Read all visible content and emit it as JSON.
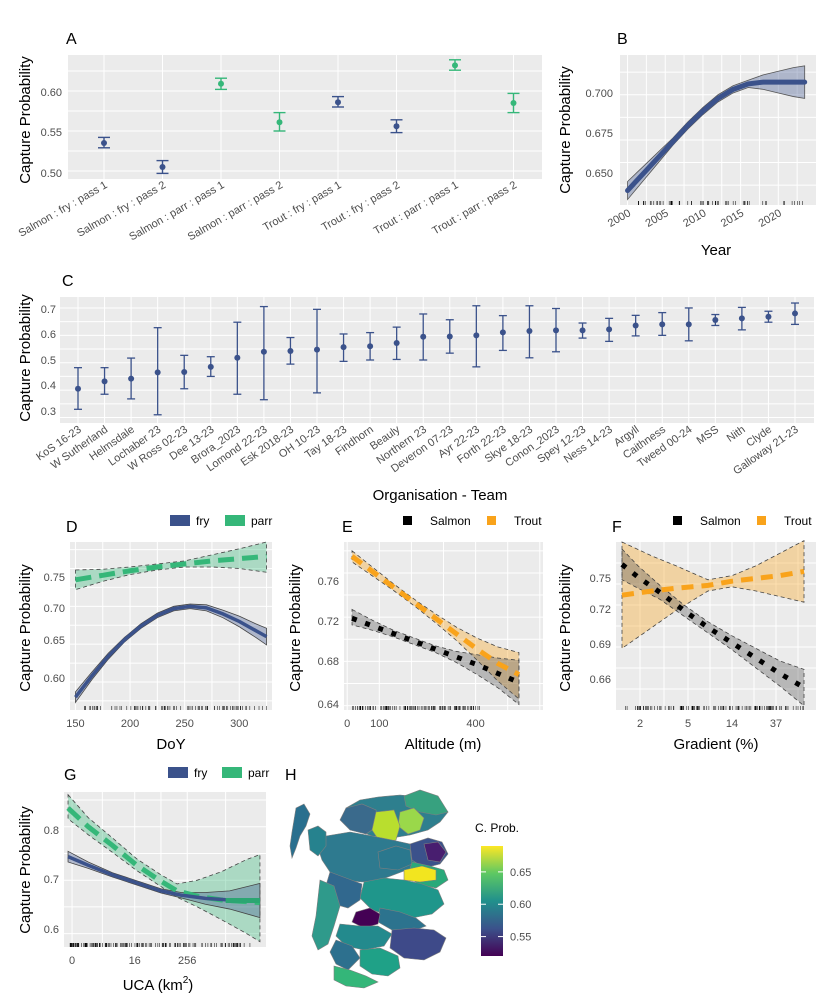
{
  "figure": {
    "colors": {
      "panel": "#EBEBEB",
      "grid": "#FFFFFF",
      "fry": "#3B528B",
      "parr": "#35B779",
      "salmon": "#000000",
      "trout": "#F9A31B",
      "parr_teal": "#2BA672"
    }
  },
  "chart_data": [
    {
      "panel": "A",
      "type": "scatter",
      "title": "",
      "xlabel": "",
      "ylabel": "Capture Probability",
      "ylim": [
        0.49,
        0.645
      ],
      "yticks": [
        "0.50",
        "0.55",
        "0.60"
      ],
      "categories": [
        "Salmon : fry : pass 1",
        "Salmon : fry : pass 2",
        "Salmon : parr : pass 1",
        "Salmon : parr : pass 2",
        "Trout : fry : pass 1",
        "Trout : fry : pass 2",
        "Trout : parr : pass 1",
        "Trout : parr : pass 2"
      ],
      "values": [
        0.535,
        0.505,
        0.609,
        0.561,
        0.586,
        0.556,
        0.632,
        0.585
      ],
      "lower": [
        0.529,
        0.497,
        0.602,
        0.55,
        0.58,
        0.548,
        0.626,
        0.573
      ],
      "upper": [
        0.542,
        0.513,
        0.616,
        0.573,
        0.593,
        0.564,
        0.639,
        0.597
      ],
      "life_stage": [
        "fry",
        "fry",
        "parr",
        "parr",
        "fry",
        "fry",
        "parr",
        "parr"
      ]
    },
    {
      "panel": "B",
      "type": "line",
      "xlabel": "Year",
      "ylabel": "Capture Probability",
      "xlim": [
        1999,
        2025
      ],
      "ylim": [
        0.639,
        0.722
      ],
      "xticks": [
        "2000",
        "2005",
        "2010",
        "2015",
        "2020"
      ],
      "yticks": [
        "0.650",
        "0.675",
        "0.700"
      ],
      "x": [
        2000,
        2002,
        2004,
        2006,
        2008,
        2010,
        2012,
        2014,
        2016,
        2018,
        2020,
        2022,
        2023.5
      ],
      "y": [
        0.647,
        0.656,
        0.665,
        0.674,
        0.683,
        0.691,
        0.698,
        0.703,
        0.706,
        0.707,
        0.707,
        0.707,
        0.707
      ],
      "lower": [
        0.642,
        0.652,
        0.662,
        0.672,
        0.681,
        0.689,
        0.696,
        0.701,
        0.704,
        0.703,
        0.701,
        0.699,
        0.698
      ],
      "upper": [
        0.652,
        0.66,
        0.668,
        0.676,
        0.685,
        0.693,
        0.7,
        0.705,
        0.708,
        0.711,
        0.713,
        0.715,
        0.716
      ]
    },
    {
      "panel": "C",
      "type": "scatter",
      "xlabel": "Organisation - Team",
      "ylabel": "Capture Probability",
      "ylim": [
        0.28,
        0.74
      ],
      "yticks": [
        "0.3",
        "0.4",
        "0.5",
        "0.6",
        "0.7"
      ],
      "categories": [
        "KoS 16-23",
        "W Sutherland",
        "Helmsdale",
        "Lochaber 23",
        "W Ross 02-23",
        "Dee 13-23",
        "Brora_2023",
        "Lomond 22-23",
        "Esk 2018-23",
        "OH 10-23",
        "Tay 18-23",
        "Findhorn",
        "Beauly",
        "Northern 23",
        "Deveron 07-23",
        "Ayr 22-23",
        "Forth 22-23",
        "Skye 18-23",
        "Conon_2023",
        "Spey 12-23",
        "Ness 14-23",
        "Argyll",
        "Caithness",
        "Tweed 00-24",
        "MSS",
        "Nith",
        "Clyde",
        "Galloway 21-23"
      ],
      "values": [
        0.405,
        0.432,
        0.442,
        0.465,
        0.466,
        0.485,
        0.518,
        0.54,
        0.543,
        0.548,
        0.557,
        0.56,
        0.572,
        0.595,
        0.596,
        0.6,
        0.611,
        0.616,
        0.618,
        0.618,
        0.622,
        0.636,
        0.64,
        0.64,
        0.656,
        0.662,
        0.668,
        0.68
      ],
      "lower": [
        0.33,
        0.385,
        0.368,
        0.31,
        0.405,
        0.45,
        0.385,
        0.365,
        0.495,
        0.39,
        0.505,
        0.51,
        0.512,
        0.51,
        0.535,
        0.485,
        0.545,
        0.518,
        0.54,
        0.59,
        0.578,
        0.598,
        0.6,
        0.58,
        0.636,
        0.62,
        0.648,
        0.64
      ],
      "upper": [
        0.482,
        0.482,
        0.517,
        0.628,
        0.527,
        0.522,
        0.648,
        0.705,
        0.592,
        0.695,
        0.605,
        0.61,
        0.63,
        0.678,
        0.657,
        0.708,
        0.672,
        0.708,
        0.698,
        0.645,
        0.662,
        0.673,
        0.683,
        0.7,
        0.676,
        0.702,
        0.688,
        0.718
      ]
    },
    {
      "panel": "D",
      "type": "line",
      "xlabel": "DoY",
      "ylabel": "Capture Probability",
      "xlim": [
        145,
        330
      ],
      "ylim": [
        0.563,
        0.785
      ],
      "xticks": [
        "150",
        "200",
        "250",
        "300"
      ],
      "yticks": [
        "0.60",
        "0.65",
        "0.70",
        "0.75"
      ],
      "legend": [
        "fry",
        "parr"
      ],
      "series": [
        {
          "name": "fry",
          "x": [
            150,
            165,
            180,
            195,
            210,
            225,
            240,
            255,
            270,
            285,
            300,
            315,
            325
          ],
          "y": [
            0.58,
            0.608,
            0.634,
            0.656,
            0.674,
            0.688,
            0.697,
            0.7,
            0.698,
            0.69,
            0.68,
            0.668,
            0.66
          ],
          "lower": [
            0.573,
            0.603,
            0.63,
            0.653,
            0.671,
            0.685,
            0.694,
            0.697,
            0.694,
            0.685,
            0.673,
            0.659,
            0.649
          ],
          "upper": [
            0.587,
            0.613,
            0.638,
            0.659,
            0.677,
            0.691,
            0.7,
            0.703,
            0.702,
            0.695,
            0.687,
            0.677,
            0.671
          ]
        },
        {
          "name": "parr",
          "x": [
            150,
            175,
            200,
            225,
            250,
            275,
            300,
            325
          ],
          "y": [
            0.735,
            0.741,
            0.747,
            0.752,
            0.756,
            0.76,
            0.763,
            0.766
          ],
          "lower": [
            0.722,
            0.733,
            0.742,
            0.748,
            0.752,
            0.752,
            0.75,
            0.745
          ],
          "upper": [
            0.748,
            0.749,
            0.752,
            0.756,
            0.76,
            0.768,
            0.776,
            0.785
          ]
        }
      ]
    },
    {
      "panel": "E",
      "type": "line",
      "xlabel": "Altitude (m)",
      "ylabel": "Capture Probability",
      "xlim": [
        -10,
        610
      ],
      "ylim": [
        0.636,
        0.788
      ],
      "xticks": [
        "0",
        "100",
        "400"
      ],
      "yticks": [
        "0.64",
        "0.68",
        "0.72",
        "0.76"
      ],
      "legend": [
        "Salmon",
        "Trout"
      ],
      "series": [
        {
          "name": "Salmon",
          "x": [
            15,
            80,
            145,
            210,
            275,
            340,
            405,
            470,
            535
          ],
          "y": [
            0.719,
            0.712,
            0.705,
            0.698,
            0.691,
            0.684,
            0.677,
            0.669,
            0.661
          ],
          "lower": [
            0.713,
            0.708,
            0.702,
            0.695,
            0.688,
            0.679,
            0.668,
            0.656,
            0.641
          ],
          "upper": [
            0.727,
            0.717,
            0.708,
            0.701,
            0.694,
            0.689,
            0.686,
            0.683,
            0.681
          ]
        },
        {
          "name": "Trout",
          "x": [
            15,
            80,
            145,
            210,
            275,
            340,
            405,
            470,
            535
          ],
          "y": [
            0.775,
            0.761,
            0.747,
            0.733,
            0.719,
            0.705,
            0.691,
            0.678,
            0.668
          ],
          "lower": [
            0.77,
            0.757,
            0.744,
            0.73,
            0.715,
            0.699,
            0.681,
            0.662,
            0.646
          ],
          "upper": [
            0.78,
            0.765,
            0.75,
            0.736,
            0.723,
            0.711,
            0.701,
            0.693,
            0.688
          ]
        }
      ]
    },
    {
      "panel": "F",
      "type": "line",
      "xlabel": "Gradient (%)",
      "ylabel": "Capture Probability",
      "xlim": [
        0,
        1
      ],
      "ylim": [
        0.645,
        0.765
      ],
      "xticks": [
        "2",
        "5",
        "14",
        "37"
      ],
      "yticks": [
        "0.66",
        "0.69",
        "0.72",
        "0.75"
      ],
      "legend": [
        "Salmon",
        "Trout"
      ],
      "series": [
        {
          "name": "Salmon",
          "x": [
            0.03,
            0.11,
            0.22,
            0.34,
            0.46,
            0.58,
            0.7,
            0.82,
            0.94
          ],
          "y": [
            0.749,
            0.74,
            0.729,
            0.716,
            0.704,
            0.693,
            0.682,
            0.671,
            0.661
          ],
          "lower": [
            0.738,
            0.732,
            0.724,
            0.712,
            0.7,
            0.688,
            0.675,
            0.662,
            0.648
          ],
          "upper": [
            0.76,
            0.748,
            0.734,
            0.72,
            0.708,
            0.698,
            0.689,
            0.68,
            0.674
          ]
        },
        {
          "name": "Trout",
          "x": [
            0.03,
            0.18,
            0.3,
            0.46,
            0.58,
            0.7,
            0.82,
            0.94
          ],
          "y": [
            0.727,
            0.73,
            0.732,
            0.734,
            0.737,
            0.739,
            0.741,
            0.744
          ],
          "lower": [
            0.689,
            0.704,
            0.716,
            0.73,
            0.733,
            0.73,
            0.726,
            0.722
          ],
          "upper": [
            0.765,
            0.755,
            0.748,
            0.738,
            0.741,
            0.748,
            0.757,
            0.766
          ]
        }
      ]
    },
    {
      "panel": "G",
      "type": "line",
      "xlabel": "UCA (km",
      "xlabel_sup": "2",
      "xlabel_end": ")",
      "ylabel": "Capture Probability",
      "xlim": [
        0,
        1
      ],
      "ylim": [
        0.575,
        0.865
      ],
      "xticks": [
        "0",
        "16",
        "256"
      ],
      "yticks": [
        "0.6",
        "0.7",
        "0.8"
      ],
      "legend": [
        "fry",
        "parr"
      ],
      "series": [
        {
          "name": "fry",
          "x": [
            0.02,
            0.12,
            0.24,
            0.36,
            0.48,
            0.58,
            0.7,
            0.82,
            0.97
          ],
          "y": [
            0.744,
            0.728,
            0.71,
            0.695,
            0.68,
            0.672,
            0.666,
            0.663,
            0.662
          ],
          "lower": [
            0.734,
            0.722,
            0.706,
            0.691,
            0.676,
            0.667,
            0.655,
            0.646,
            0.63
          ],
          "upper": [
            0.754,
            0.734,
            0.714,
            0.699,
            0.684,
            0.677,
            0.677,
            0.68,
            0.694
          ]
        },
        {
          "name": "parr",
          "x": [
            0.02,
            0.12,
            0.24,
            0.36,
            0.48,
            0.56,
            0.66,
            0.78,
            0.9,
            0.97
          ],
          "y": [
            0.835,
            0.8,
            0.765,
            0.728,
            0.698,
            0.68,
            0.67,
            0.663,
            0.66,
            0.658
          ],
          "lower": [
            0.815,
            0.785,
            0.752,
            0.718,
            0.688,
            0.668,
            0.65,
            0.626,
            0.601,
            0.585
          ],
          "upper": [
            0.86,
            0.817,
            0.779,
            0.74,
            0.71,
            0.693,
            0.7,
            0.716,
            0.738,
            0.748
          ]
        }
      ]
    },
    {
      "panel": "H",
      "type": "heatmap",
      "title": "",
      "legend_title": "C. Prob.",
      "colorbar_ticks": [
        "0.65",
        "0.60",
        "0.55"
      ],
      "colorbar_range": [
        0.52,
        0.69
      ]
    }
  ],
  "panel_labels": [
    "A",
    "B",
    "C",
    "D",
    "E",
    "F",
    "G",
    "H"
  ]
}
